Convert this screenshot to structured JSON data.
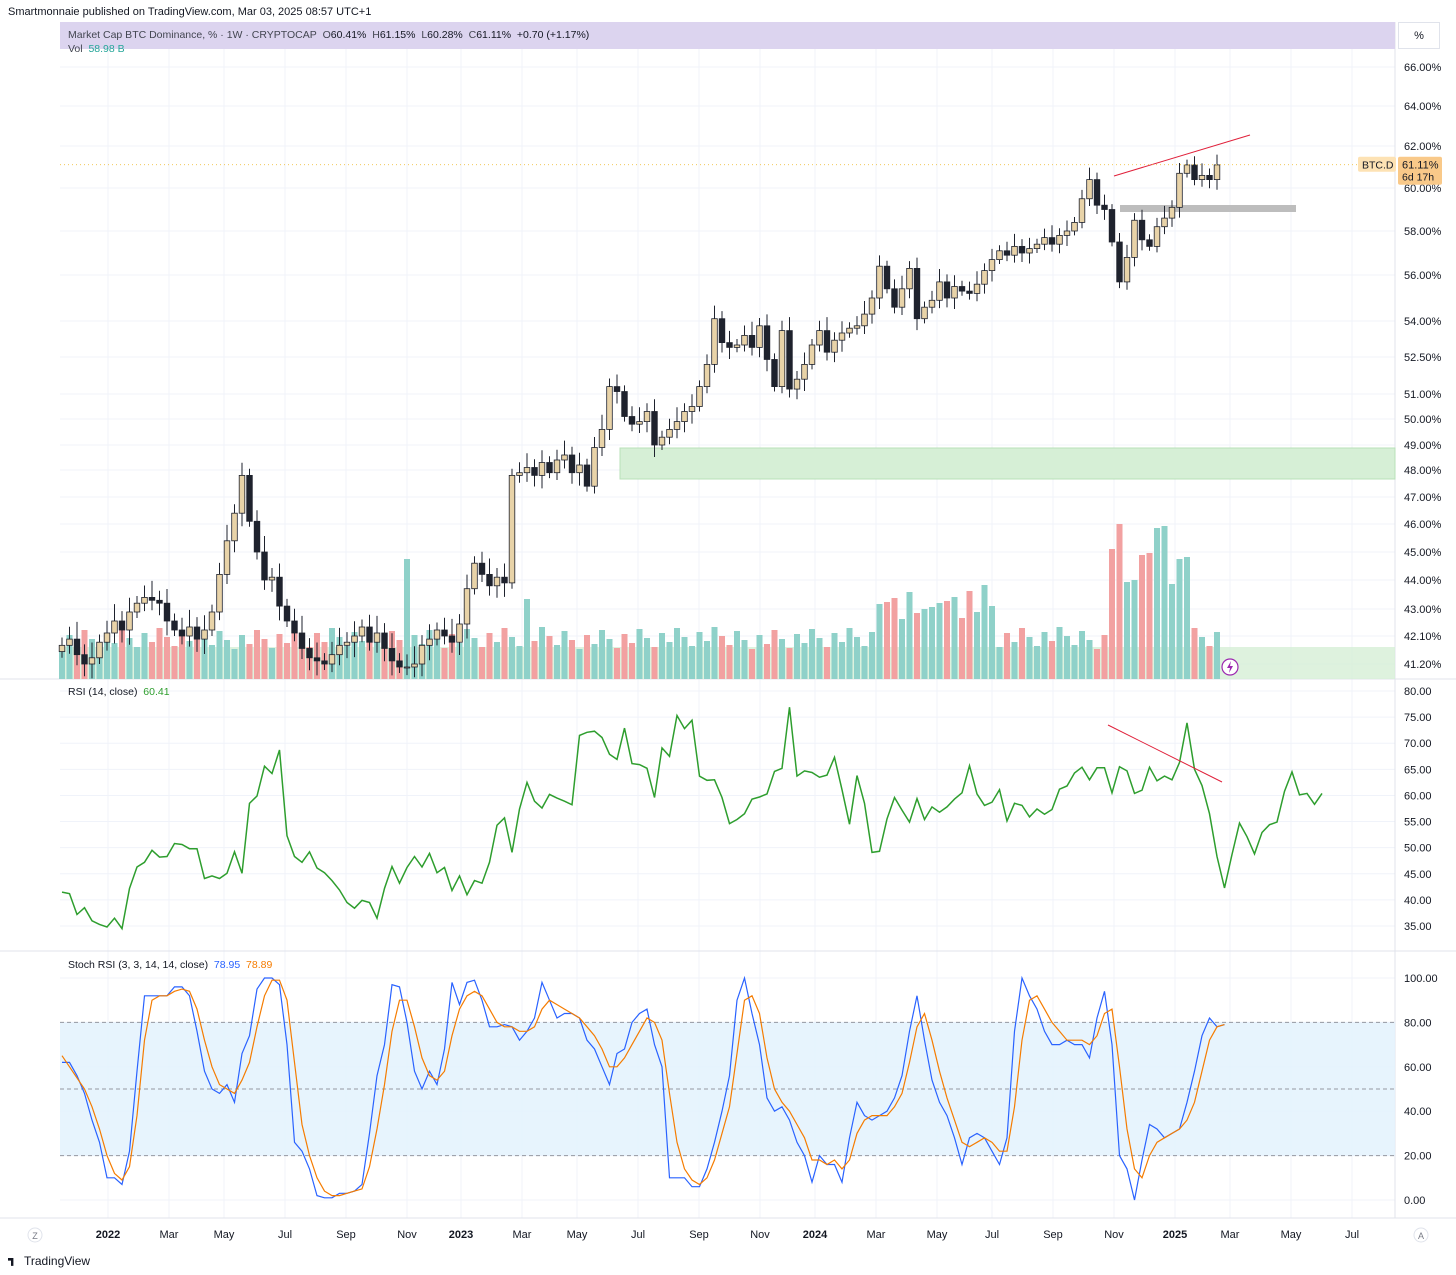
{
  "header": {
    "publisher": "Smartmonnaie published on TradingView.com, Mar 03, 2025 08:57 UTC+1"
  },
  "legend": {
    "title": "Market Cap BTC Dominance, % · 1W · CRYPTOCAP",
    "o_label": "O",
    "o": "60.41%",
    "h_label": "H",
    "h": "61.15%",
    "l_label": "L",
    "l": "60.28%",
    "c_label": "C",
    "c": "61.11%",
    "change": "+0.70 (+1.17%)",
    "vol_label": "Vol",
    "vol_value": "58.98 B"
  },
  "scale_mode": "%",
  "price_tag": {
    "symbol": "BTC.D",
    "value": "61.11%",
    "countdown": "6d 17h"
  },
  "rsi_legend": {
    "label": "RSI (14, close)",
    "value": "60.41"
  },
  "stoch_legend": {
    "label": "Stoch RSI (3, 3, 14, 14, close)",
    "k_value": "78.95",
    "d_value": "78.89"
  },
  "time_buttons": {
    "left": "Z",
    "right": "A"
  },
  "brand": "TradingView",
  "colors": {
    "up": "#e8d3a8",
    "down": "#1e222d",
    "vol_up": "#8fd1c9",
    "vol_down": "#f2a1a1",
    "zone": "#d6efd6",
    "rsi": "#2e9e2e",
    "stoch_k": "#2962ff",
    "stoch_d": "#f57c00",
    "annotation": "#e0203a"
  },
  "chart_data": [
    {
      "type": "candlestick",
      "name": "BTC.D",
      "ylabels": [
        "66.00%",
        "64.00%",
        "62.00%",
        "60.00%",
        "58.00%",
        "56.00%",
        "54.00%",
        "52.50%",
        "51.00%",
        "50.00%",
        "49.00%",
        "48.00%",
        "47.00%",
        "46.00%",
        "45.00%",
        "44.00%",
        "43.00%",
        "42.10%",
        "41.20%"
      ],
      "ylevels": [
        66,
        64,
        62,
        60,
        58,
        56,
        54,
        52.5,
        51,
        50,
        49,
        48,
        47,
        46,
        45,
        44,
        43,
        42.1,
        41.2
      ],
      "x_labels": [
        "2022",
        "Mar",
        "May",
        "Jul",
        "Sep",
        "Nov",
        "2023",
        "Mar",
        "May",
        "Jul",
        "Sep",
        "Nov",
        "2024",
        "Mar",
        "May",
        "Jul",
        "Sep",
        "Nov",
        "2025",
        "Mar",
        "May",
        "Jul"
      ],
      "closes": [
        41.8,
        42.0,
        41.5,
        41.2,
        41.4,
        41.9,
        42.2,
        42.6,
        42.3,
        42.9,
        43.2,
        43.4,
        43.3,
        43.2,
        42.6,
        42.3,
        42.1,
        42.4,
        42.0,
        42.3,
        42.9,
        44.2,
        45.4,
        46.4,
        47.8,
        46.1,
        45.0,
        44.0,
        44.1,
        43.1,
        42.6,
        42.2,
        41.7,
        41.4,
        41.3,
        41.2,
        41.5,
        41.8,
        41.9,
        42.1,
        42.4,
        41.9,
        42.2,
        41.7,
        41.3,
        41.1,
        41.1,
        41.2,
        41.8,
        42.0,
        42.3,
        42.1,
        41.9,
        42.5,
        43.7,
        44.6,
        44.2,
        43.8,
        44.1,
        43.9,
        47.8,
        47.9,
        48.1,
        47.8,
        48.3,
        47.9,
        48.4,
        48.6,
        47.9,
        48.2,
        47.4,
        48.9,
        49.6,
        51.3,
        51.1,
        50.1,
        49.8,
        49.9,
        50.3,
        49.0,
        49.3,
        49.6,
        49.9,
        50.3,
        50.5,
        51.3,
        52.2,
        54.1,
        53.1,
        52.9,
        53.0,
        53.4,
        52.9,
        53.8,
        52.4,
        51.3,
        53.6,
        51.2,
        51.6,
        52.2,
        53.0,
        53.6,
        52.7,
        53.2,
        53.5,
        53.7,
        53.8,
        54.3,
        55.0,
        56.4,
        55.4,
        54.6,
        55.4,
        56.3,
        54.1,
        54.6,
        54.9,
        55.7,
        55.0,
        55.5,
        55.3,
        55.2,
        55.6,
        56.2,
        56.7,
        57.1,
        56.9,
        57.3,
        57.0,
        57.2,
        57.4,
        57.7,
        57.4,
        57.8,
        58.0,
        58.4,
        59.5,
        60.4,
        59.2,
        59.0,
        57.5,
        55.7,
        56.8,
        58.5,
        57.6,
        57.3,
        58.2,
        58.6,
        59.1,
        60.7,
        61.1,
        60.4,
        60.6,
        60.4,
        61.1
      ]
    },
    {
      "type": "line",
      "name": "RSI",
      "ylabels": [
        "80.00",
        "75.00",
        "70.00",
        "65.00",
        "60.00",
        "55.00",
        "50.00",
        "45.00",
        "40.00",
        "35.00"
      ],
      "ylevels": [
        80,
        75,
        70,
        65,
        60,
        55,
        50,
        45,
        40,
        35
      ],
      "values": [
        41.5,
        41.2,
        37.2,
        38.5,
        36.0,
        35.3,
        34.8,
        36.5,
        34.5,
        42.2,
        46.3,
        47.2,
        49.5,
        48.2,
        48.3,
        50.8,
        50.6,
        49.8,
        49.8,
        44.1,
        44.6,
        44.1,
        45.1,
        49.2,
        45.1,
        58.5,
        59.9,
        65.6,
        64.2,
        68.7,
        52.3,
        48.3,
        47.2,
        49.2,
        46.1,
        45.2,
        43.7,
        41.9,
        39.5,
        38.4,
        39.9,
        39.5,
        36.5,
        42.2,
        46.4,
        43.2,
        46.2,
        48.3,
        46.3,
        48.9,
        45.2,
        46.2,
        41.8,
        44.6,
        41.0,
        43.7,
        43.2,
        47.2,
        54.3,
        55.7,
        49.1,
        57.4,
        62.5,
        58.9,
        57.6,
        60.2,
        59.5,
        58.9,
        58.2,
        71.5,
        72.1,
        72.3,
        71.1,
        67.9,
        66.9,
        72.9,
        66.1,
        65.9,
        65.2,
        59.6,
        69.1,
        67.5,
        75.3,
        72.8,
        74.4,
        63.7,
        62.9,
        63.0,
        59.6,
        54.6,
        55.4,
        56.5,
        59.3,
        59.7,
        60.3,
        64.6,
        65.2,
        76.9,
        63.7,
        64.7,
        64.4,
        63.5,
        63.9,
        67.3,
        61.1,
        54.5,
        63.8,
        58.5,
        49.1,
        49.3,
        55.5,
        59.6,
        57.2,
        54.9,
        59.4,
        55.4,
        57.8,
        56.8,
        57.8,
        59.3,
        60.5,
        65.7,
        60.3,
        58.1,
        58.7,
        61.1,
        55.1,
        58.5,
        58.1,
        55.9,
        57.4,
        56.4,
        57.3,
        61.2,
        61.8,
        64.3,
        65.4,
        63.0,
        65.3,
        65.3,
        60.5,
        65.5,
        64.7,
        60.4,
        61.0,
        65.4,
        62.8,
        63.7,
        63.0,
        66.3,
        73.9,
        65.0,
        61.9,
        56.5,
        48.3,
        42.3,
        48.7,
        54.7,
        52.1,
        48.8,
        52.9,
        54.4,
        54.9,
        60.8,
        64.5,
        60.1,
        60.4,
        58.3,
        60.4
      ]
    },
    {
      "type": "line",
      "name": "Stoch RSI",
      "ylabels": [
        "100.00",
        "80.00",
        "60.00",
        "40.00",
        "20.00",
        "0.00"
      ],
      "ylevels": [
        100,
        80,
        60,
        40,
        20,
        0
      ],
      "series": [
        {
          "key": "k",
          "values": [
            62,
            62,
            56,
            48,
            36,
            26,
            10,
            10,
            7,
            22,
            58,
            92,
            92,
            92,
            92,
            96,
            96,
            92,
            76,
            58,
            50,
            48,
            52,
            44,
            66,
            74,
            95,
            100,
            100,
            97,
            70,
            26,
            22,
            14,
            2,
            1,
            1,
            3,
            3,
            4,
            7,
            30,
            56,
            70,
            97,
            96,
            80,
            58,
            50,
            58,
            52,
            68,
            98,
            88,
            98,
            99,
            90,
            78,
            78,
            79,
            78,
            72,
            76,
            82,
            98,
            90,
            82,
            84,
            84,
            82,
            72,
            68,
            60,
            52,
            66,
            68,
            80,
            84,
            86,
            70,
            60,
            10,
            10,
            10,
            6,
            6,
            14,
            26,
            40,
            56,
            90,
            100,
            84,
            70,
            46,
            40,
            42,
            36,
            26,
            20,
            8,
            20,
            16,
            16,
            8,
            28,
            44,
            38,
            36,
            38,
            40,
            46,
            56,
            76,
            92,
            72,
            54,
            44,
            38,
            28,
            16,
            28,
            30,
            28,
            22,
            16,
            28,
            76,
            100,
            92,
            86,
            76,
            70,
            70,
            72,
            70,
            70,
            64,
            82,
            94,
            70,
            20,
            14,
            0,
            18,
            34,
            32,
            28,
            30,
            32,
            44,
            58,
            74,
            82,
            78,
            79
          ]
        },
        {
          "key": "d",
          "values": [
            65,
            60,
            55,
            50,
            42,
            32,
            20,
            12,
            9,
            15,
            38,
            72,
            90,
            92,
            92,
            94,
            95,
            94,
            86,
            72,
            60,
            52,
            50,
            48,
            54,
            62,
            78,
            92,
            99,
            99,
            90,
            62,
            34,
            20,
            10,
            4,
            2,
            2,
            3,
            4,
            5,
            15,
            32,
            52,
            76,
            90,
            90,
            78,
            64,
            56,
            54,
            58,
            74,
            86,
            92,
            94,
            92,
            86,
            80,
            78,
            78,
            76,
            76,
            78,
            86,
            90,
            88,
            86,
            84,
            82,
            78,
            74,
            68,
            60,
            60,
            64,
            70,
            76,
            82,
            80,
            72,
            48,
            26,
            14,
            9,
            7,
            10,
            18,
            30,
            42,
            66,
            90,
            92,
            84,
            64,
            50,
            44,
            40,
            34,
            28,
            18,
            18,
            16,
            18,
            14,
            18,
            30,
            36,
            38,
            38,
            38,
            42,
            48,
            62,
            78,
            84,
            72,
            58,
            46,
            36,
            26,
            24,
            26,
            28,
            26,
            22,
            22,
            42,
            72,
            90,
            92,
            86,
            80,
            76,
            72,
            72,
            72,
            70,
            74,
            84,
            86,
            60,
            32,
            14,
            10,
            20,
            26,
            28,
            30,
            32,
            36,
            44,
            58,
            72,
            78,
            79
          ]
        }
      ],
      "bands": [
        80,
        50,
        20
      ]
    }
  ]
}
